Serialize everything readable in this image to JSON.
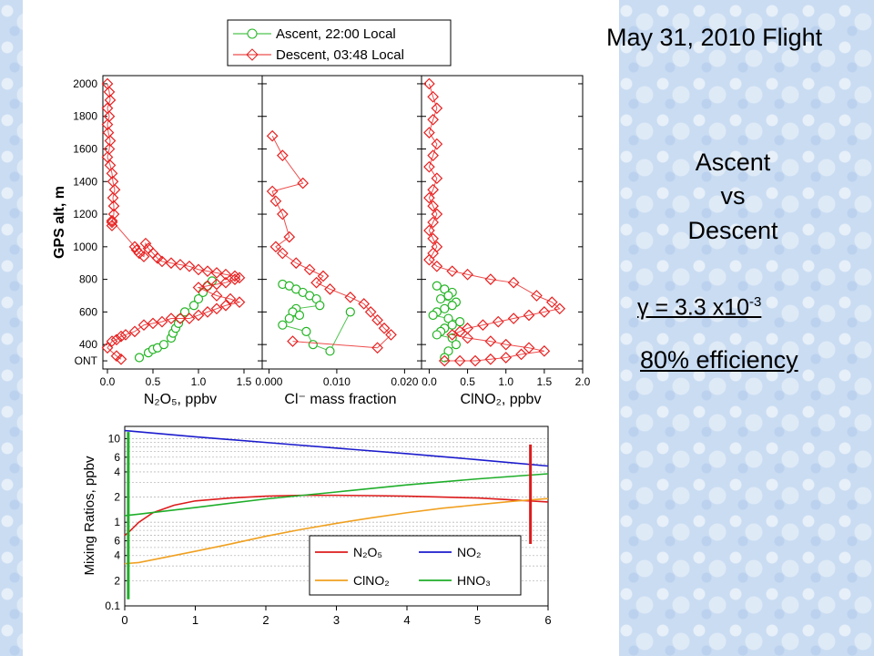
{
  "slide": {
    "title": "May 31, 2010 Flight",
    "comparison": [
      "Ascent",
      "vs",
      "Descent"
    ],
    "gamma": {
      "symbol": "γ",
      "text": " = 3.3 x10",
      "exponent": "-3"
    },
    "efficiency": "80% efficiency"
  },
  "colors": {
    "ascent": "#22b422",
    "descent": "#e82020",
    "n2o5": "#dd1b1b",
    "no2": "#1c1ccd",
    "clno2": "#f0a020",
    "hno3": "#1fae2a",
    "background_tile": "#c9dcf2"
  },
  "chart_data": [
    {
      "type": "scatter",
      "panel": "N2O5 profile",
      "ylabel": "GPS alt, m",
      "xlabel": "N₂O₅, ppbv",
      "xlim": [
        -0.05,
        1.7
      ],
      "ylim": [
        250,
        2050
      ],
      "xticks": [
        "0.0",
        "0.5",
        "1.0",
        "1.5"
      ],
      "yticks": [
        {
          "v": 400,
          "t": "400"
        },
        {
          "v": 600,
          "t": "600"
        },
        {
          "v": 800,
          "t": "800"
        },
        {
          "v": 1000,
          "t": "1000"
        },
        {
          "v": 1200,
          "t": "1200"
        },
        {
          "v": 1400,
          "t": "1400"
        },
        {
          "v": 1600,
          "t": "1600"
        },
        {
          "v": 1800,
          "t": "1800"
        },
        {
          "v": 2000,
          "t": "2000"
        },
        {
          "v": 300,
          "t": "ONT"
        }
      ],
      "legend": {
        "placement": "top",
        "entries": [
          "Ascent, 22:00 Local",
          "Descent, 03:48 Local"
        ]
      },
      "series": [
        {
          "name": "Ascent, 22:00 Local",
          "marker": "circle",
          "x": [
            0.35,
            0.45,
            0.5,
            0.55,
            0.62,
            0.7,
            0.72,
            0.75,
            0.78,
            0.8,
            0.85,
            0.95,
            1.0,
            1.05,
            1.1,
            1.15
          ],
          "y": [
            320,
            350,
            370,
            380,
            400,
            440,
            470,
            500,
            530,
            560,
            600,
            640,
            680,
            720,
            760,
            790
          ]
        },
        {
          "name": "Descent, 03:48 Local",
          "marker": "diamond",
          "x": [
            0.0,
            0.02,
            0.03,
            0.0,
            0.02,
            0.0,
            0.01,
            0.03,
            0.02,
            0.0,
            0.03,
            0.05,
            0.06,
            0.08,
            0.06,
            0.07,
            0.07,
            0.05,
            0.05,
            0.05,
            0.3,
            0.32,
            0.35,
            0.4,
            0.42,
            0.45,
            0.5,
            0.55,
            0.6,
            0.7,
            0.8,
            0.9,
            1.0,
            1.1,
            1.2,
            1.3,
            1.4,
            1.45,
            1.4,
            1.3,
            1.2,
            1.1,
            1.0,
            1.2,
            1.35,
            1.45,
            1.3,
            1.2,
            1.1,
            1.0,
            0.9,
            0.8,
            0.7,
            0.6,
            0.5,
            0.4,
            0.3,
            0.2,
            0.15,
            0.1,
            0.05,
            0.0,
            0.1,
            0.15
          ],
          "y": [
            2000,
            1950,
            1900,
            1850,
            1800,
            1750,
            1700,
            1650,
            1600,
            1550,
            1500,
            1450,
            1400,
            1350,
            1300,
            1250,
            1200,
            1150,
            1130,
            1160,
            1000,
            980,
            960,
            940,
            1020,
            990,
            960,
            930,
            910,
            900,
            890,
            880,
            860,
            850,
            840,
            830,
            820,
            810,
            800,
            780,
            770,
            760,
            750,
            700,
            680,
            660,
            640,
            620,
            600,
            580,
            560,
            560,
            560,
            540,
            530,
            520,
            480,
            460,
            450,
            430,
            420,
            380,
            330,
            310
          ]
        }
      ]
    },
    {
      "type": "scatter",
      "panel": "Cl- mass fraction profile",
      "xlabel": "Cl⁻ mass fraction",
      "xlim": [
        -0.001,
        0.0225
      ],
      "ylim": [
        250,
        2050
      ],
      "xticks": [
        "0.000",
        "0.010",
        "0.020"
      ],
      "series": [
        {
          "name": "Ascent, 22:00 Local",
          "marker": "circle",
          "x": [
            0.002,
            0.003,
            0.004,
            0.005,
            0.006,
            0.007,
            0.0075,
            0.004,
            0.0035,
            0.0045,
            0.003,
            0.002,
            0.0055,
            0.0065,
            0.009,
            0.012
          ],
          "y": [
            770,
            760,
            740,
            720,
            700,
            680,
            640,
            620,
            600,
            580,
            560,
            520,
            480,
            400,
            360,
            600
          ]
        },
        {
          "name": "Descent, 03:48 Local",
          "marker": "diamond",
          "x": [
            0.0005,
            0.002,
            0.005,
            0.0005,
            0.001,
            0.002,
            0.003,
            0.001,
            0.002,
            0.004,
            0.006,
            0.008,
            0.007,
            0.009,
            0.012,
            0.014,
            0.015,
            0.016,
            0.017,
            0.018,
            0.016,
            0.0035
          ],
          "y": [
            1680,
            1560,
            1390,
            1340,
            1280,
            1200,
            1060,
            1000,
            960,
            900,
            860,
            820,
            780,
            740,
            690,
            650,
            600,
            550,
            500,
            460,
            380,
            420
          ]
        }
      ]
    },
    {
      "type": "scatter",
      "panel": "ClNO2 profile",
      "xlabel": "ClNO₂, ppbv",
      "xlim": [
        -0.1,
        2.0
      ],
      "ylim": [
        250,
        2050
      ],
      "xticks": [
        "0.0",
        "0.5",
        "1.0",
        "1.5",
        "2.0"
      ],
      "series": [
        {
          "name": "Ascent, 22:00 Local",
          "marker": "circle",
          "x": [
            0.1,
            0.2,
            0.3,
            0.25,
            0.15,
            0.35,
            0.3,
            0.2,
            0.1,
            0.05,
            0.25,
            0.4,
            0.3,
            0.2,
            0.15,
            0.1,
            0.3,
            0.35,
            0.25,
            0.2
          ],
          "y": [
            760,
            740,
            720,
            700,
            680,
            660,
            640,
            620,
            600,
            580,
            560,
            540,
            520,
            500,
            480,
            460,
            440,
            400,
            360,
            320
          ]
        },
        {
          "name": "Descent, 03:48 Local",
          "marker": "diamond",
          "x": [
            0.0,
            0.05,
            0.1,
            0.05,
            0.0,
            0.1,
            0.05,
            0.0,
            0.1,
            0.05,
            0.0,
            0.05,
            0.1,
            0.05,
            0.0,
            0.05,
            0.1,
            0.05,
            0.0,
            0.1,
            0.3,
            0.5,
            0.8,
            1.1,
            1.4,
            1.6,
            1.7,
            1.5,
            1.3,
            1.1,
            0.9,
            0.7,
            0.5,
            0.4,
            0.3,
            0.5,
            0.8,
            1.0,
            1.3,
            1.5,
            1.2,
            1.0,
            0.8,
            0.6,
            0.4,
            0.2
          ],
          "y": [
            2000,
            1920,
            1850,
            1780,
            1700,
            1630,
            1560,
            1490,
            1420,
            1350,
            1300,
            1250,
            1200,
            1150,
            1100,
            1050,
            1000,
            960,
            920,
            880,
            850,
            830,
            800,
            780,
            700,
            660,
            620,
            600,
            580,
            560,
            540,
            520,
            500,
            480,
            460,
            440,
            420,
            400,
            380,
            360,
            340,
            320,
            310,
            300,
            300,
            300
          ]
        }
      ]
    },
    {
      "type": "line",
      "panel": "Mixing ratios model",
      "ylabel": "Mixing Ratios, ppbv",
      "yscale": "log",
      "xlim": [
        0,
        6
      ],
      "ylim": [
        0.1,
        14
      ],
      "xticks": [
        "0",
        "1",
        "2",
        "3",
        "4",
        "5",
        "6"
      ],
      "yticks": [
        {
          "v": 10,
          "t": "10"
        },
        {
          "v": 6,
          "t": "6"
        },
        {
          "v": 4,
          "t": "4"
        },
        {
          "v": 2,
          "t": "2"
        },
        {
          "v": 1,
          "t": "1"
        },
        {
          "v": 0.6,
          "t": "6"
        },
        {
          "v": 0.4,
          "t": "4"
        },
        {
          "v": 0.2,
          "t": "2"
        },
        {
          "v": 0.1,
          "t": "0.1"
        }
      ],
      "grid": true,
      "legend": {
        "placement": "bottom-right"
      },
      "series": [
        {
          "name": "N₂O₅",
          "color": "#dd1b1b",
          "x": [
            0,
            0.05,
            0.2,
            0.4,
            0.7,
            1.0,
            1.5,
            2.0,
            2.5,
            3.0,
            3.5,
            4.0,
            4.5,
            5.0,
            5.5,
            6.0
          ],
          "y": [
            0.7,
            0.75,
            1.0,
            1.3,
            1.6,
            1.8,
            1.95,
            2.05,
            2.1,
            2.1,
            2.08,
            2.05,
            2.0,
            1.95,
            1.85,
            1.75
          ]
        },
        {
          "name": "NO₂",
          "color": "#1c1ccd",
          "x": [
            0,
            1,
            2,
            3,
            4,
            5,
            6
          ],
          "y": [
            12.5,
            10.5,
            9.0,
            7.7,
            6.6,
            5.6,
            4.7
          ]
        },
        {
          "name": "ClNO₂",
          "color": "#f0a020",
          "x": [
            0,
            0.2,
            0.5,
            1,
            1.5,
            2,
            2.5,
            3,
            3.5,
            4,
            4.5,
            5,
            5.5,
            6
          ],
          "y": [
            0.32,
            0.33,
            0.37,
            0.45,
            0.55,
            0.68,
            0.82,
            0.97,
            1.13,
            1.3,
            1.47,
            1.62,
            1.78,
            1.92
          ]
        },
        {
          "name": "HNO₃",
          "color": "#1fae2a",
          "x": [
            0,
            0.2,
            1,
            2,
            3,
            4,
            5,
            6
          ],
          "y": [
            1.2,
            1.25,
            1.5,
            1.9,
            2.3,
            2.8,
            3.3,
            3.8
          ]
        }
      ],
      "markers": [
        {
          "label": "green bar",
          "color": "#1fae2a",
          "x": 0.05,
          "y_range": [
            0.12,
            12
          ]
        },
        {
          "label": "red bar",
          "color": "#dd1b1b",
          "x": 5.75,
          "y_range": [
            0.55,
            8.5
          ]
        }
      ]
    }
  ]
}
